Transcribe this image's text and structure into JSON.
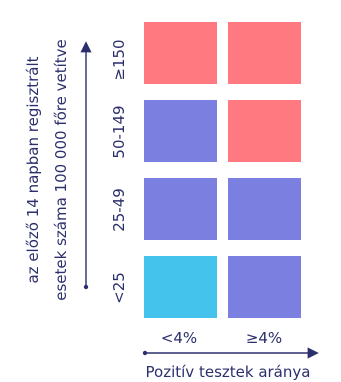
{
  "chart_data": {
    "type": "heatmap",
    "title": "",
    "xlabel": "Pozitív tesztek aránya",
    "ylabel": "az előző 14 napban regisztrált esetek száma 100 000 főre vetítve",
    "ylabel_lines": [
      "az előző 14 napban regisztrált",
      "esetek száma 100 000 főre vetítve"
    ],
    "x_categories": [
      "<4%",
      "≥4%"
    ],
    "y_categories": [
      "<25",
      "25-49",
      "50-149",
      "≥150"
    ],
    "cells": [
      [
        "lightblue",
        "purple"
      ],
      [
        "purple",
        "purple"
      ],
      [
        "purple",
        "red"
      ],
      [
        "red",
        "red"
      ]
    ],
    "colors": {
      "lightblue": "#44c4ec",
      "purple": "#7b80e0",
      "red": "#ff7a80",
      "axis": "#2b2f6b"
    }
  }
}
